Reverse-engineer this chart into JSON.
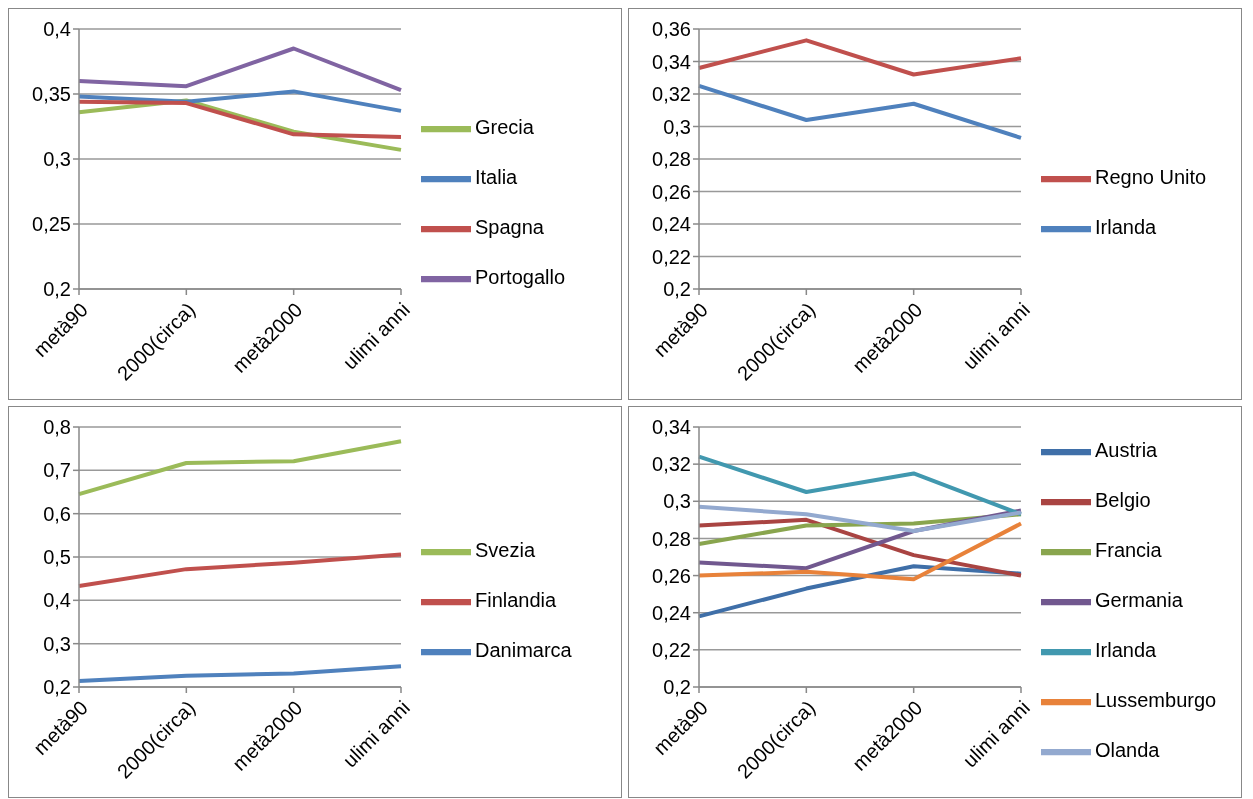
{
  "chart_data": [
    {
      "type": "line",
      "categories": [
        "metà90",
        "2000(circa)",
        "metà2000",
        "ulimi anni"
      ],
      "ylim": [
        0.2,
        0.4
      ],
      "yticks": [
        {
          "value": 0.2,
          "label": "0,2"
        },
        {
          "value": 0.25,
          "label": "0,25"
        },
        {
          "value": 0.3,
          "label": "0,3"
        },
        {
          "value": 0.35,
          "label": "0,35"
        },
        {
          "value": 0.4,
          "label": "0,4"
        }
      ],
      "grid": "y",
      "legend": "right",
      "marker": "none",
      "line_style": "solid",
      "series": [
        {
          "name": "Grecia",
          "color": "#9bbb59",
          "values": [
            0.336,
            0.345,
            0.321,
            0.307
          ]
        },
        {
          "name": "Italia",
          "color": "#4f81bd",
          "values": [
            0.348,
            0.344,
            0.352,
            0.337
          ]
        },
        {
          "name": "Spagna",
          "color": "#c0504d",
          "values": [
            0.344,
            0.343,
            0.319,
            0.317
          ]
        },
        {
          "name": "Portogallo",
          "color": "#8064a2",
          "values": [
            0.36,
            0.356,
            0.385,
            0.353
          ]
        }
      ]
    },
    {
      "type": "line",
      "categories": [
        "metà90",
        "2000(circa)",
        "metà2000",
        "ulimi anni"
      ],
      "ylim": [
        0.2,
        0.36
      ],
      "yticks": [
        {
          "value": 0.2,
          "label": "0,2"
        },
        {
          "value": 0.22,
          "label": "0,22"
        },
        {
          "value": 0.24,
          "label": "0,24"
        },
        {
          "value": 0.26,
          "label": "0,26"
        },
        {
          "value": 0.28,
          "label": "0,28"
        },
        {
          "value": 0.3,
          "label": "0,3"
        },
        {
          "value": 0.32,
          "label": "0,32"
        },
        {
          "value": 0.34,
          "label": "0,34"
        },
        {
          "value": 0.36,
          "label": "0,36"
        }
      ],
      "grid": "y",
      "legend": "right",
      "marker": "none",
      "line_style": "solid",
      "series": [
        {
          "name": "Regno Unito",
          "color": "#c0504d",
          "values": [
            0.336,
            0.353,
            0.332,
            0.342
          ]
        },
        {
          "name": "Irlanda",
          "color": "#4f81bd",
          "values": [
            0.325,
            0.304,
            0.314,
            0.293
          ]
        }
      ]
    },
    {
      "type": "line",
      "categories": [
        "metà90",
        "2000(circa)",
        "metà2000",
        "ulimi anni"
      ],
      "ylim": [
        0.2,
        0.8
      ],
      "yticks": [
        {
          "value": 0.2,
          "label": "0,2"
        },
        {
          "value": 0.3,
          "label": "0,3"
        },
        {
          "value": 0.4,
          "label": "0,4"
        },
        {
          "value": 0.5,
          "label": "0,5"
        },
        {
          "value": 0.6,
          "label": "0,6"
        },
        {
          "value": 0.7,
          "label": "0,7"
        },
        {
          "value": 0.8,
          "label": "0,8"
        }
      ],
      "grid": "y",
      "legend": "right",
      "marker": "none",
      "line_style": "solid",
      "series": [
        {
          "name": "Svezia",
          "color": "#9bbb59",
          "values": [
            0.645,
            0.717,
            0.721,
            0.767
          ]
        },
        {
          "name": "Finlandia",
          "color": "#c0504d",
          "values": [
            0.433,
            0.472,
            0.487,
            0.506
          ]
        },
        {
          "name": "Danimarca",
          "color": "#4f81bd",
          "values": [
            0.214,
            0.226,
            0.231,
            0.248
          ]
        }
      ]
    },
    {
      "type": "line",
      "categories": [
        "metà90",
        "2000(circa)",
        "metà2000",
        "ulimi anni"
      ],
      "ylim": [
        0.2,
        0.34
      ],
      "yticks": [
        {
          "value": 0.2,
          "label": "0,2"
        },
        {
          "value": 0.22,
          "label": "0,22"
        },
        {
          "value": 0.24,
          "label": "0,24"
        },
        {
          "value": 0.26,
          "label": "0,26"
        },
        {
          "value": 0.28,
          "label": "0,28"
        },
        {
          "value": 0.3,
          "label": "0,3"
        },
        {
          "value": 0.32,
          "label": "0,32"
        },
        {
          "value": 0.34,
          "label": "0,34"
        }
      ],
      "grid": "y",
      "legend": "right",
      "marker": "none",
      "line_style": "solid",
      "series": [
        {
          "name": "Austria",
          "color": "#3f6fa8",
          "values": [
            0.238,
            0.253,
            0.265,
            0.261
          ]
        },
        {
          "name": "Belgio",
          "color": "#a94442",
          "values": [
            0.287,
            0.29,
            0.271,
            0.26
          ]
        },
        {
          "name": "Francia",
          "color": "#89a54e",
          "values": [
            0.277,
            0.287,
            0.288,
            0.293
          ]
        },
        {
          "name": "Germania",
          "color": "#71588f",
          "values": [
            0.267,
            0.264,
            0.284,
            0.295
          ]
        },
        {
          "name": "Irlanda",
          "color": "#4198af",
          "values": [
            0.324,
            0.305,
            0.315,
            0.293
          ]
        },
        {
          "name": "Lussemburgo",
          "color": "#e8823a",
          "values": [
            0.26,
            0.262,
            0.258,
            0.288
          ]
        },
        {
          "name": "Olanda",
          "color": "#93a9cf",
          "values": [
            0.297,
            0.293,
            0.284,
            0.294
          ]
        }
      ]
    }
  ]
}
